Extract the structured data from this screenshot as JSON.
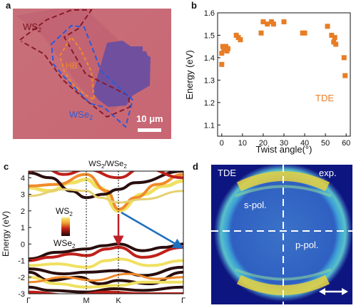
{
  "panels": {
    "a": {
      "letter": "a",
      "label_ws2": "WS",
      "label_ws2_sub": "2",
      "label_hb": "HB",
      "label_wse2": "WSe",
      "label_wse2_sub": "2",
      "scalebar_label": "10 μm",
      "colors": {
        "background": "#c9707a",
        "ws2_outline": "#8a1a2a",
        "wse2_outline": "#2a5bd8",
        "hb_outline": "#f08a2a",
        "flake": "#6a4a9a"
      }
    },
    "b": {
      "letter": "b"
    },
    "c": {
      "letter": "c",
      "legend_top": "WS",
      "legend_top_sub": "2",
      "legend_bottom": "WSe",
      "legend_bottom_sub": "2",
      "colors": {
        "dark": "#2a0d0d",
        "mid": "#c0201a",
        "orange": "#f08a2a",
        "yellow": "#f0e060",
        "arrow_red": "#c0202a",
        "arrow_blue": "#1f6fbf"
      }
    },
    "d": {
      "letter": "d",
      "label_tde": "TDE",
      "label_exp": "exp.",
      "label_spol": "s-pol.",
      "label_ppol": "p-pol.",
      "arrow_icon": "double-arrow-icon"
    }
  },
  "chart_data": [
    {
      "type": "scatter",
      "title": "",
      "xlabel": "Twist angle(°)",
      "ylabel": "Energy (eV)",
      "xlim": [
        -2,
        62
      ],
      "ylim": [
        1.05,
        1.6
      ],
      "xticks": [
        0,
        10,
        20,
        30,
        40,
        50,
        60
      ],
      "yticks": [
        1.1,
        1.2,
        1.3,
        1.4,
        1.5,
        1.6
      ],
      "grid": false,
      "annotation": "TDE",
      "color": "#e87d25",
      "series": [
        {
          "x": [
            0,
            0,
            0.5,
            1,
            2,
            2.5,
            3,
            7,
            8,
            9,
            19,
            20,
            22,
            24,
            25,
            30,
            39,
            40,
            51,
            53,
            54,
            54.5,
            55,
            59,
            59.5
          ],
          "y": [
            1.37,
            1.42,
            1.45,
            1.44,
            1.45,
            1.43,
            1.44,
            1.5,
            1.49,
            1.48,
            1.51,
            1.56,
            1.55,
            1.56,
            1.55,
            1.56,
            1.51,
            1.51,
            1.54,
            1.5,
            1.47,
            1.49,
            1.46,
            1.4,
            1.32
          ]
        }
      ]
    },
    {
      "type": "line",
      "title": "WS",
      "title_sub": "2",
      "title_mid": "/WSe",
      "title_sub2": "2",
      "ylabel": "Energy (eV)",
      "ylim": [
        -3,
        4.4
      ],
      "yticks": [
        -3,
        -2,
        -1,
        0,
        1,
        2,
        3,
        4
      ],
      "xticks": [
        "Γ",
        "M",
        "K",
        "Γ"
      ],
      "grid": false
    }
  ]
}
